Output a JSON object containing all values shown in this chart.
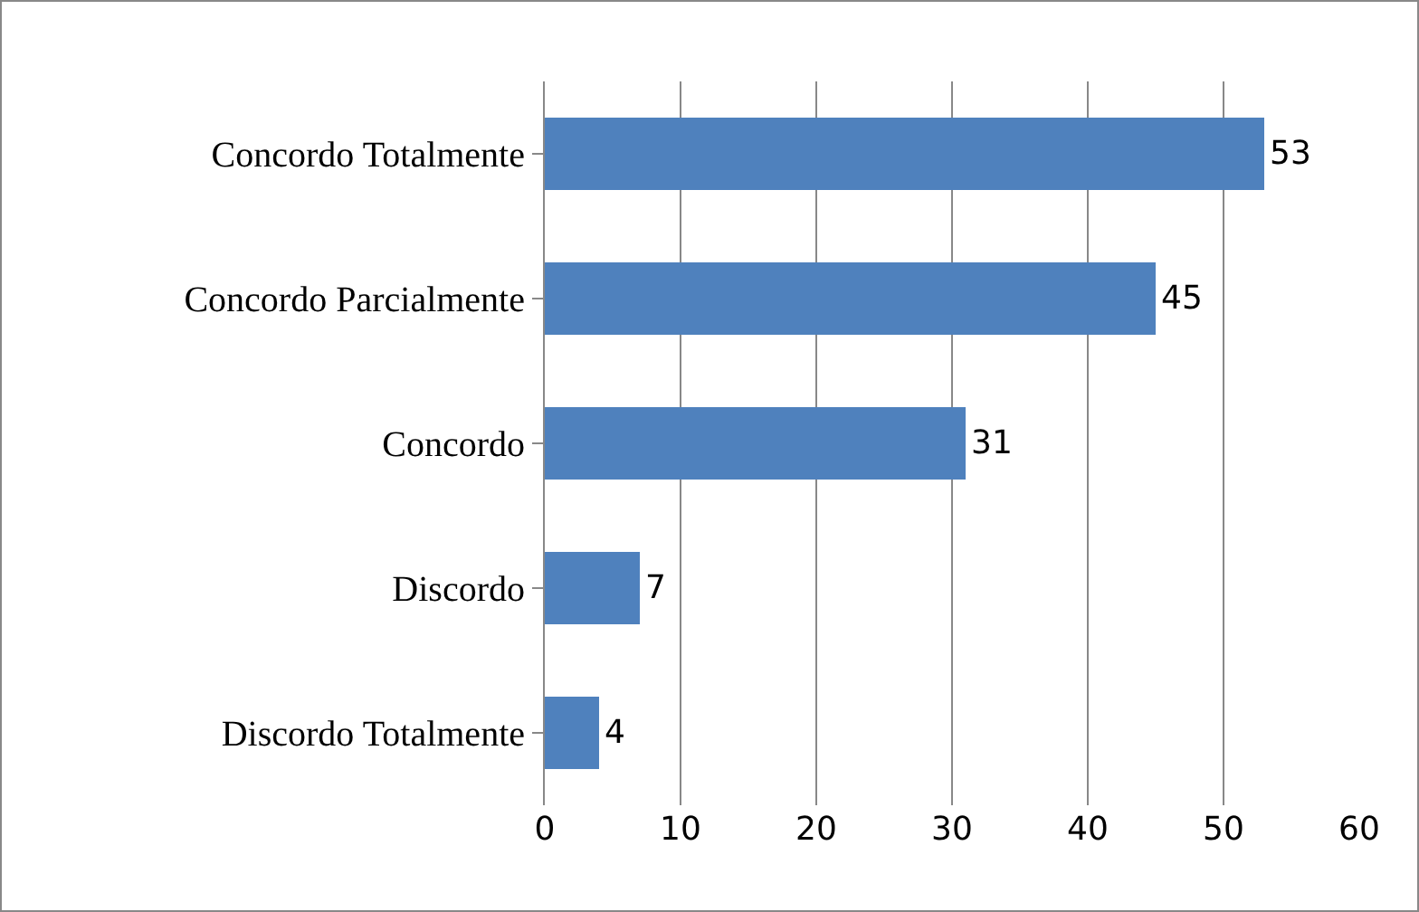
{
  "chart_data": {
    "type": "bar",
    "orientation": "horizontal",
    "categories": [
      "Concordo Totalmente",
      "Concordo Parcialmente",
      "Concordo",
      "Discordo",
      "Discordo Totalmente"
    ],
    "values": [
      53,
      45,
      31,
      7,
      4
    ],
    "color": "#4f81bd",
    "xlim": [
      0,
      60
    ],
    "xticks": [
      0,
      10,
      20,
      30,
      40,
      50,
      60
    ],
    "grid": "x",
    "data_labels": true
  }
}
